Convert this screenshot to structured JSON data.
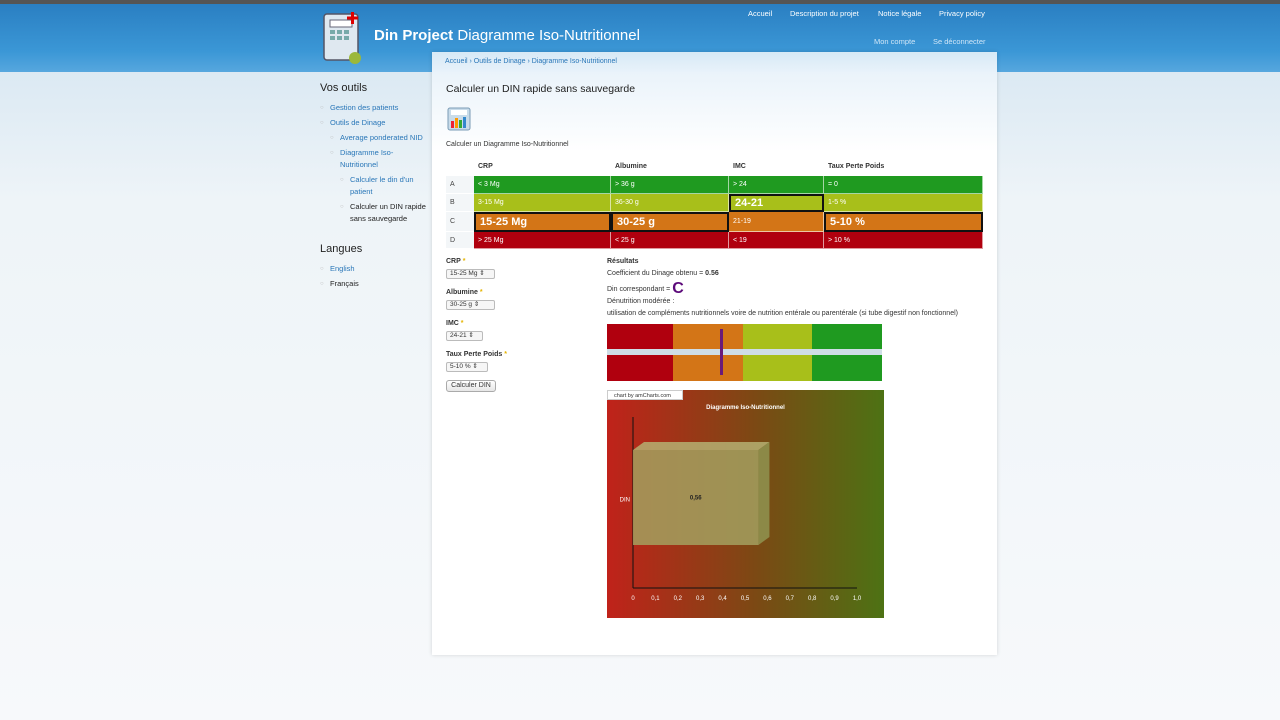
{
  "header": {
    "site_name": "Din Project",
    "site_subtitle": "Diagramme Iso-Nutritionnel",
    "nav": [
      "Accueil",
      "Description du projet",
      "Notice légale",
      "Privacy policy"
    ],
    "account": [
      "Mon compte",
      "Se déconnecter"
    ]
  },
  "breadcrumb": "Accueil › Outils de Dinage › Diagramme Iso-Nutritionnel",
  "sidebar": {
    "tools_title": "Vos outils",
    "items": [
      "Gestion des patients",
      "Outils de Dinage",
      "Average ponderated NID",
      "Diagramme Iso-Nutritionnel",
      "Calculer le din d'un patient",
      "Calculer un DIN rapide sans sauvegarde"
    ],
    "lang_title": "Langues",
    "langs": [
      "English",
      "Français"
    ]
  },
  "page": {
    "title": "Calculer un DIN rapide sans sauvegarde",
    "subtitle": "Calculer un Diagramme Iso-Nutritionnel"
  },
  "table": {
    "headers": [
      "CRP",
      "Albumine",
      "IMC",
      "Taux Perte Poids"
    ],
    "rows": [
      {
        "label": "A",
        "cells": [
          "< 3 Mg",
          "> 36 g",
          "> 24",
          "= 0"
        ]
      },
      {
        "label": "B",
        "cells": [
          "3-15 Mg",
          "36-30 g",
          "24-21",
          "1-5 %"
        ]
      },
      {
        "label": "C",
        "cells": [
          "15-25 Mg",
          "30-25 g",
          "21-19",
          "5-10 %"
        ]
      },
      {
        "label": "D",
        "cells": [
          "> 25 Mg",
          "< 25 g",
          "< 19",
          "> 10 %"
        ]
      }
    ],
    "row_colors": [
      "#1f9a20",
      "#a8bf1a",
      "#d37517",
      "#b0000e"
    ]
  },
  "form": {
    "fields": [
      {
        "label": "CRP",
        "value": "15-25 Mg"
      },
      {
        "label": "Albumine",
        "value": "30-25 g"
      },
      {
        "label": "IMC",
        "value": "24-21"
      },
      {
        "label": "Taux Perte Poids",
        "value": "5-10 %"
      }
    ],
    "required_mark": "*",
    "submit": "Calculer DIN"
  },
  "results": {
    "title": "Résultats",
    "coef_label": "Coefficient du Dinage obtenu = ",
    "coef_value": "0.56",
    "din_label": "Din correspondant = ",
    "din_value": "C",
    "status": "Dénutrition modérée :",
    "advice": "utilisation de compléments nutritionnels voire de nutrition entérale ou parentérale (si tube digestif non fonctionnel)",
    "gauge_value": 0.41
  },
  "chart_data": {
    "type": "bar",
    "credit": "chart by amCharts.com",
    "title": "Diagramme Iso-Nutritionnel",
    "categories": [
      "DIN"
    ],
    "values": [
      0.56
    ],
    "value_label": "0,56",
    "xlim": [
      0,
      1.0
    ],
    "ticks": [
      "0",
      "0,1",
      "0,2",
      "0,3",
      "0,4",
      "0,5",
      "0,6",
      "0,7",
      "0,8",
      "0,9",
      "1,0"
    ]
  }
}
